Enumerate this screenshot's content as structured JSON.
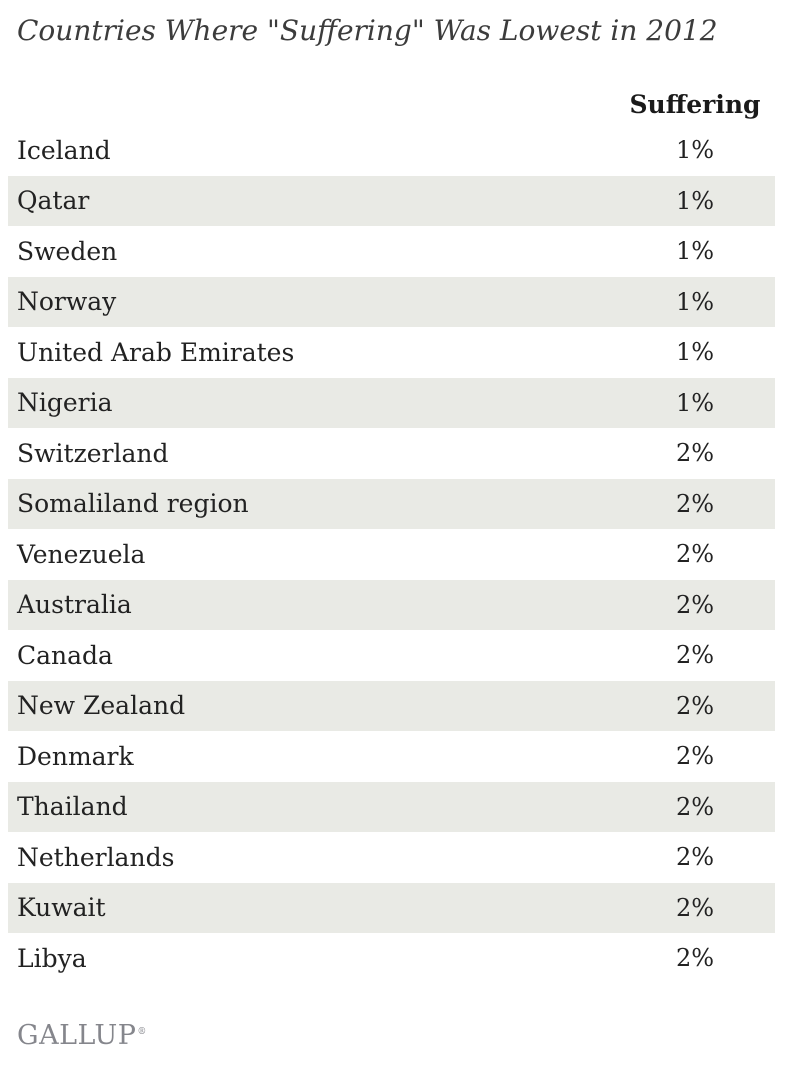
{
  "title": "Countries Where \"Suffering\" Was Lowest in 2012",
  "table": {
    "value_header": "Suffering",
    "rows": [
      {
        "country": "Iceland",
        "value": "1%"
      },
      {
        "country": "Qatar",
        "value": "1%"
      },
      {
        "country": "Sweden",
        "value": "1%"
      },
      {
        "country": "Norway",
        "value": "1%"
      },
      {
        "country": "United Arab Emirates",
        "value": "1%"
      },
      {
        "country": "Nigeria",
        "value": "1%"
      },
      {
        "country": "Switzerland",
        "value": "2%"
      },
      {
        "country": "Somaliland region",
        "value": "2%"
      },
      {
        "country": "Venezuela",
        "value": "2%"
      },
      {
        "country": "Australia",
        "value": "2%"
      },
      {
        "country": "Canada",
        "value": "2%"
      },
      {
        "country": "New Zealand",
        "value": "2%"
      },
      {
        "country": "Denmark",
        "value": "2%"
      },
      {
        "country": "Thailand",
        "value": "2%"
      },
      {
        "country": "Netherlands",
        "value": "2%"
      },
      {
        "country": "Kuwait",
        "value": "2%"
      },
      {
        "country": "Libya",
        "value": "2%"
      }
    ]
  },
  "footer": {
    "logo_text": "GALLUP",
    "logo_mark": "®"
  },
  "colors": {
    "row_shade": "#e9eae5",
    "title_text": "#3c3c3c",
    "body_text": "#222222",
    "logo_gray": "#85868c"
  },
  "chart_data": {
    "type": "table",
    "title": "Countries Where \"Suffering\" Was Lowest in 2012",
    "columns": [
      "Country",
      "Suffering"
    ],
    "categories": [
      "Iceland",
      "Qatar",
      "Sweden",
      "Norway",
      "United Arab Emirates",
      "Nigeria",
      "Switzerland",
      "Somaliland region",
      "Venezuela",
      "Australia",
      "Canada",
      "New Zealand",
      "Denmark",
      "Thailand",
      "Netherlands",
      "Kuwait",
      "Libya"
    ],
    "values": [
      1,
      1,
      1,
      1,
      1,
      1,
      2,
      2,
      2,
      2,
      2,
      2,
      2,
      2,
      2,
      2,
      2
    ],
    "unit": "%",
    "source_logo": "GALLUP"
  }
}
